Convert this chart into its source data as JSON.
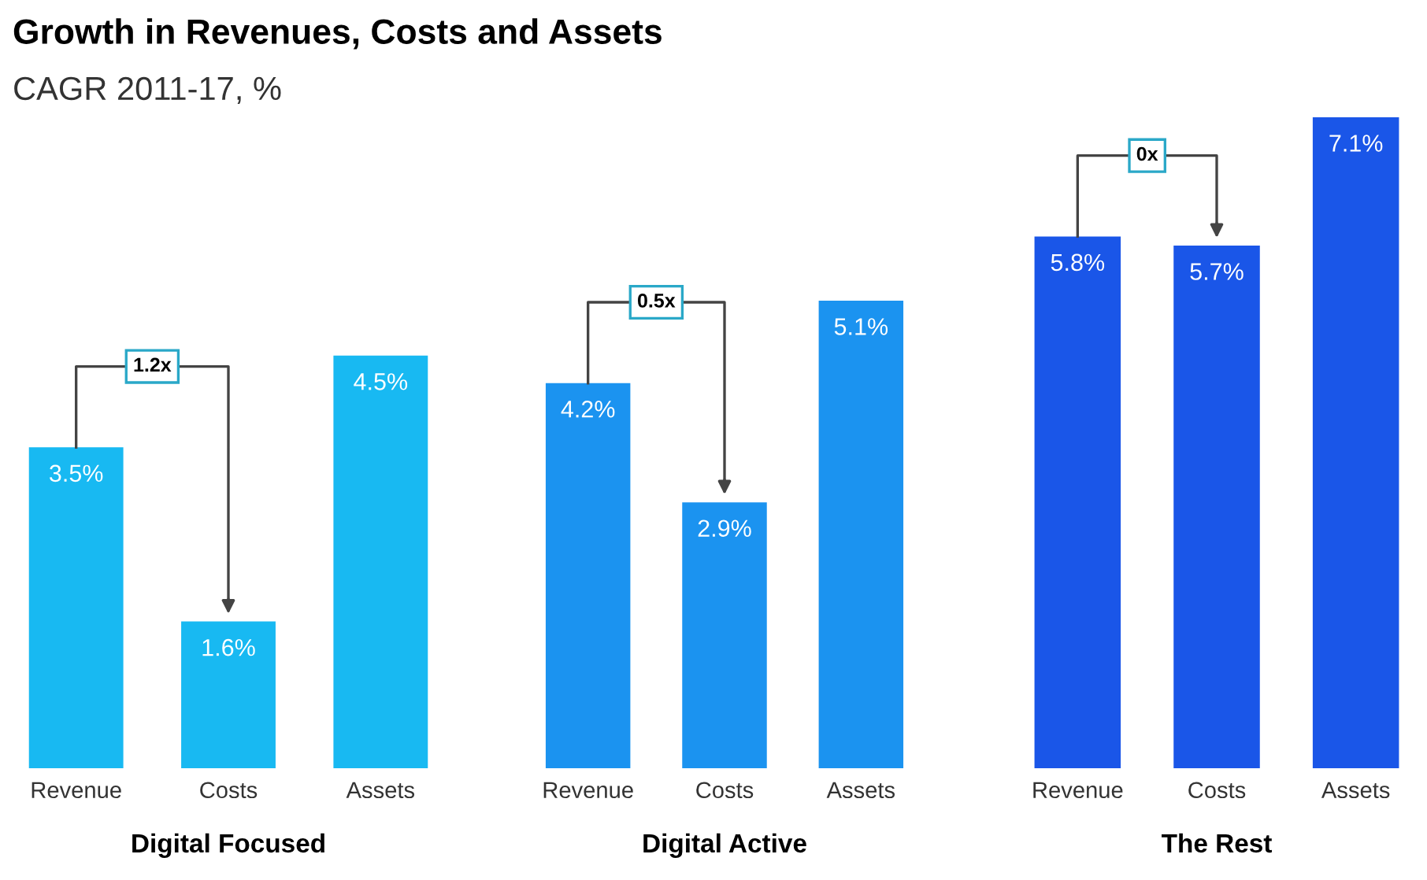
{
  "chart_data": [
    {
      "type": "bar",
      "title": "Growth in Revenues, Costs and Assets",
      "subtitle": "CAGR 2011-17, %",
      "xlabel": "Digital Focused",
      "categories": [
        "Revenue",
        "Costs",
        "Assets"
      ],
      "values": [
        3.5,
        1.6,
        4.5
      ],
      "value_labels": [
        "3.5%",
        "1.6%",
        "4.5%"
      ],
      "color": "#18b9f2",
      "annotations": [
        "1.2x"
      ],
      "grid": false,
      "tick_labels": "x"
    },
    {
      "type": "bar",
      "xlabel": "Digital Active",
      "categories": [
        "Revenue",
        "Costs",
        "Assets"
      ],
      "values": [
        4.2,
        2.9,
        5.1
      ],
      "value_labels": [
        "4.2%",
        "2.9%",
        "5.1%"
      ],
      "color": "#1b93f0",
      "annotations": [
        "0.5x"
      ],
      "grid": false,
      "tick_labels": "x"
    },
    {
      "type": "bar",
      "xlabel": "The Rest",
      "categories": [
        "Revenue",
        "Costs",
        "Assets"
      ],
      "values": [
        5.8,
        5.7,
        7.1
      ],
      "value_labels": [
        "5.8%",
        "5.7%",
        "7.1%"
      ],
      "color": "#1a56e8",
      "annotations": [
        "0x"
      ],
      "grid": false,
      "tick_labels": "x"
    }
  ]
}
